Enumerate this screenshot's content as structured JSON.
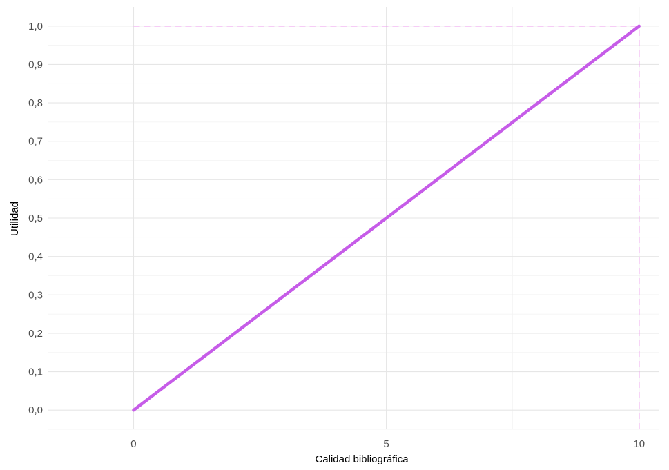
{
  "chart_data": {
    "type": "line",
    "title": "",
    "xlabel": "Calidad bibliográfica",
    "ylabel": "Utilidad",
    "xlim": [
      -1.7,
      10.4
    ],
    "ylim": [
      -0.05,
      1.05
    ],
    "x_ticks": [
      0,
      5,
      10
    ],
    "x_tick_labels": [
      "0",
      "5",
      "10"
    ],
    "y_ticks": [
      0,
      0.1,
      0.2,
      0.3,
      0.4,
      0.5,
      0.6,
      0.7,
      0.8,
      0.9,
      1.0
    ],
    "y_tick_labels": [
      "0,0",
      "0,1",
      "0,2",
      "0,3",
      "0,4",
      "0,5",
      "0,6",
      "0,7",
      "0,8",
      "0,9",
      "1,0"
    ],
    "grid": true,
    "legend": "none",
    "series": [
      {
        "x": [
          0,
          10
        ],
        "y": [
          0,
          1
        ],
        "color": "#c65ce8"
      }
    ],
    "reference_lines": [
      {
        "type": "horizontal",
        "y": 1.0,
        "x_from": 0,
        "x_to": 10,
        "style": "dashed",
        "color": "#ee99ee"
      },
      {
        "type": "vertical",
        "x": 10,
        "y_from": -0.05,
        "y_to": 1.0,
        "style": "dashed",
        "color": "#ee99ee"
      }
    ]
  }
}
